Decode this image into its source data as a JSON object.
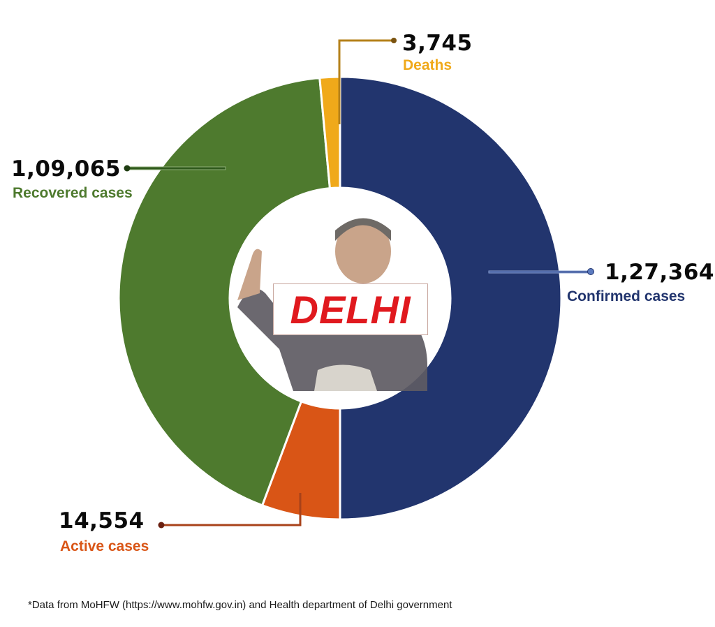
{
  "center_label": "DELHI",
  "footnote": "*Data from MoHFW (https://www.mohfw.gov.in) and Health department of Delhi government",
  "colors": {
    "confirmed": "#22356e",
    "active": "#d95516",
    "recovered": "#4e7a2e",
    "deaths": "#f0a91a",
    "delhi_red": "#e0191e"
  },
  "callouts": {
    "deaths": {
      "value": "3,745",
      "label": "Deaths"
    },
    "recovered": {
      "value": "1,09,065",
      "label": "Recovered cases"
    },
    "confirmed": {
      "value": "1,27,364",
      "label": "Confirmed cases"
    },
    "active": {
      "value": "14,554",
      "label": "Active cases"
    }
  },
  "chart_data": {
    "type": "pie",
    "subtype": "donut",
    "title": "DELHI",
    "categories": [
      "Confirmed cases",
      "Active cases",
      "Recovered cases",
      "Deaths"
    ],
    "values": [
      127364,
      14554,
      109065,
      3745
    ],
    "value_labels": [
      "1,27,364",
      "14,554",
      "1,09,065",
      "3,745"
    ],
    "colors": [
      "#22356e",
      "#d95516",
      "#4e7a2e",
      "#f0a91a"
    ],
    "start_angle_deg": 0,
    "direction": "clockwise",
    "annotations": [
      "*Data from MoHFW (https://www.mohfw.gov.in) and Health department of Delhi government"
    ],
    "legend": "callouts with leader lines"
  }
}
